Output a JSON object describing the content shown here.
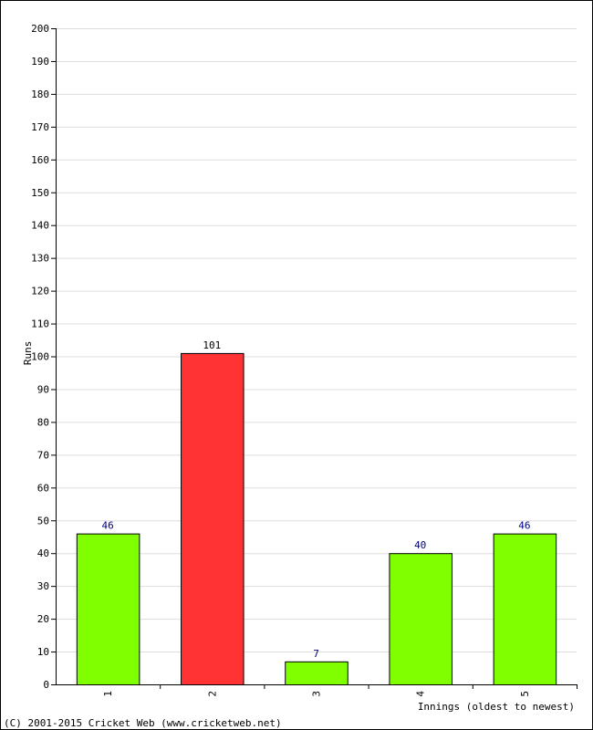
{
  "chart_data": {
    "type": "bar",
    "categories": [
      "1",
      "2",
      "3",
      "4",
      "5"
    ],
    "values": [
      46,
      101,
      7,
      40,
      46
    ],
    "bar_colors": [
      "#80ff00",
      "#ff3333",
      "#80ff00",
      "#80ff00",
      "#80ff00"
    ],
    "label_colors": [
      "#000080",
      "#000000",
      "#000080",
      "#000080",
      "#000080"
    ],
    "title": "",
    "xlabel": "Innings (oldest to newest)",
    "ylabel": "Runs",
    "ylim": [
      0,
      200
    ],
    "yticks": [
      0,
      10,
      20,
      30,
      40,
      50,
      60,
      70,
      80,
      90,
      100,
      110,
      120,
      130,
      140,
      150,
      160,
      170,
      180,
      190,
      200
    ],
    "grid": true,
    "legend": "none"
  },
  "footer": {
    "copyright": "(C) 2001-2015 Cricket Web (www.cricketweb.net)"
  }
}
